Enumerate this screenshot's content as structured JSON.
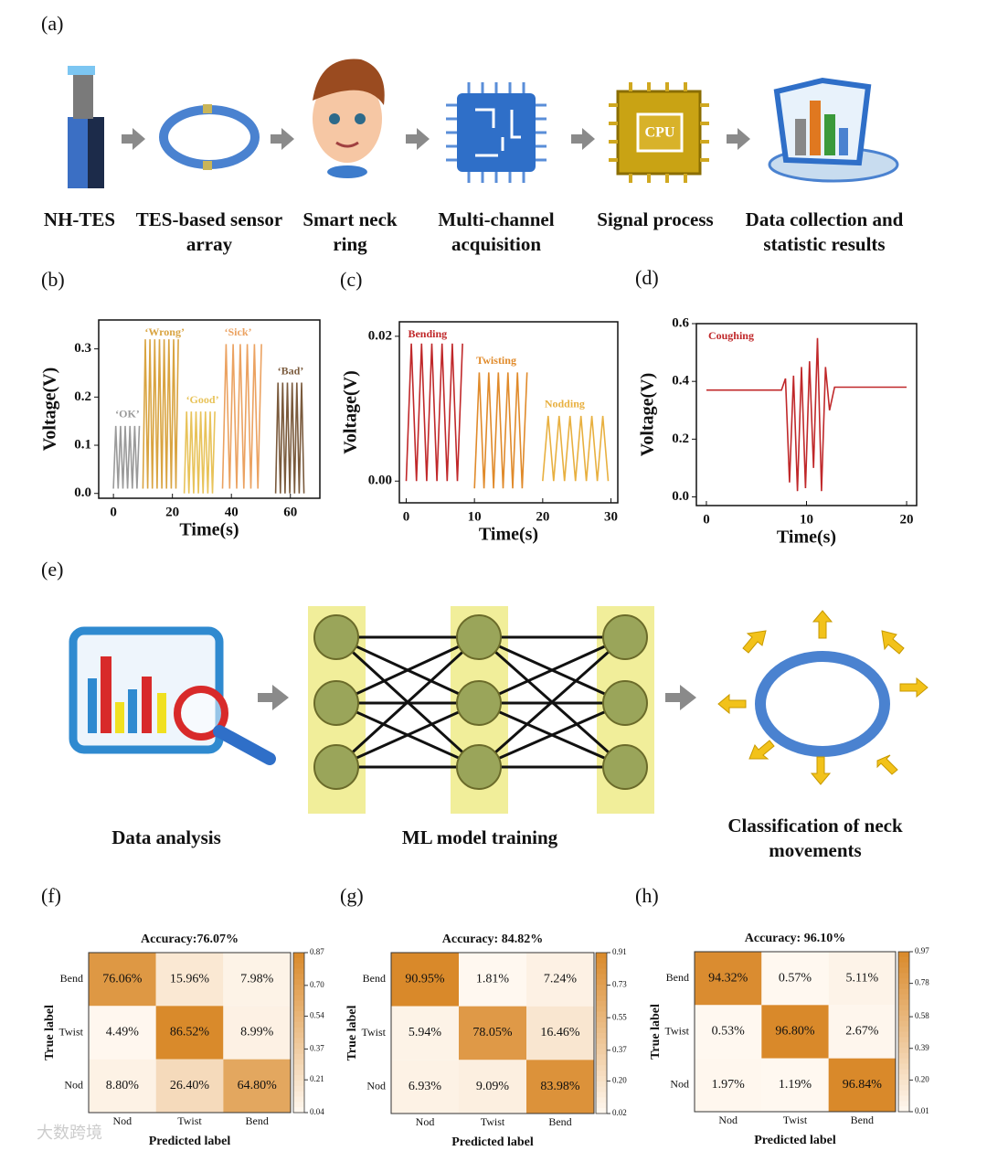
{
  "panel_labels": [
    "(a)",
    "(b)",
    "(c)",
    "(d)",
    "(e)",
    "(f)",
    "(g)",
    "(h)"
  ],
  "workflow": {
    "steps": [
      [
        "NH-TES"
      ],
      [
        "TES-based sensor",
        "array"
      ],
      [
        "Smart neck",
        "ring"
      ],
      [
        "Multi-channel",
        "acquisition"
      ],
      [
        "Signal process"
      ],
      [
        "Data collection and",
        "statistic results"
      ]
    ],
    "chip_text": "CPU"
  },
  "ml_pipeline": {
    "steps": [
      [
        "Data analysis"
      ],
      [
        "ML model training"
      ],
      [
        "Classification of neck",
        "movements"
      ]
    ]
  },
  "watermark": "大数跨境",
  "chart_data": [
    {
      "type": "line",
      "xlabel": "Time(s)",
      "ylabel": "Voltage(V)",
      "xlim": [
        -5,
        70
      ],
      "ylim": [
        -0.01,
        0.36
      ],
      "xticks": [
        0,
        20,
        40,
        60
      ],
      "yticks": [
        {
          "value": 0,
          "label": "0.0"
        },
        0.1,
        0.2,
        0.3
      ],
      "series": [
        {
          "name": "‘OK’",
          "color": "#9a9a9a",
          "x": [
            0,
            0.8,
            1.6,
            2.4,
            3.2,
            4,
            4.8,
            5.6,
            6.4,
            7.2,
            8,
            8.8
          ],
          "values": [
            0.01,
            0.14,
            0.01,
            0.14,
            0.01,
            0.14,
            0.01,
            0.14,
            0.01,
            0.14,
            0.01,
            0.14
          ]
        },
        {
          "name": "‘Wrong’",
          "color": "#d9a441",
          "x": [
            10,
            10.8,
            11.6,
            12.4,
            13.2,
            14,
            14.8,
            15.6,
            16.4,
            17.2,
            18,
            18.8,
            19.6,
            20.4,
            21.2,
            22
          ],
          "values": [
            0.01,
            0.32,
            0.01,
            0.32,
            0.01,
            0.32,
            0.01,
            0.32,
            0.01,
            0.32,
            0.01,
            0.32,
            0.01,
            0.32,
            0.01,
            0.32
          ]
        },
        {
          "name": "‘Good’",
          "color": "#e8c35a",
          "x": [
            24,
            24.8,
            25.6,
            26.4,
            27.2,
            28,
            28.8,
            29.6,
            30.4,
            31.2,
            32,
            32.8,
            33.6,
            34.4
          ],
          "values": [
            0,
            0.17,
            0,
            0.17,
            0,
            0.17,
            0,
            0.17,
            0,
            0.17,
            0,
            0.17,
            0,
            0.17
          ]
        },
        {
          "name": "‘Sick’",
          "color": "#eba261",
          "x": [
            37,
            38.2,
            39.4,
            40.6,
            41.8,
            43,
            44.2,
            45.4,
            46.6,
            47.8,
            49,
            50.2
          ],
          "values": [
            0.01,
            0.31,
            0.01,
            0.31,
            0.01,
            0.31,
            0.01,
            0.31,
            0.01,
            0.31,
            0.01,
            0.31
          ]
        },
        {
          "name": "‘Bad’",
          "color": "#7a5a3c",
          "x": [
            55,
            55.8,
            56.6,
            57.4,
            58.2,
            59,
            59.8,
            60.6,
            61.4,
            62.2,
            63,
            63.8,
            64.6
          ],
          "values": [
            0,
            0.23,
            0,
            0.23,
            0,
            0.23,
            0,
            0.23,
            0,
            0.23,
            0,
            0.23,
            0
          ]
        }
      ]
    },
    {
      "type": "line",
      "xlabel": "Time(s)",
      "ylabel": "Voltage(V)",
      "xlim": [
        -1,
        31
      ],
      "ylim": [
        -0.003,
        0.022
      ],
      "xticks": [
        0,
        10,
        20,
        30
      ],
      "yticks": [
        {
          "value": 0,
          "label": "0.00"
        },
        0.02
      ],
      "series": [
        {
          "name": "Bending",
          "color": "#c0282a",
          "x": [
            0,
            0.75,
            1.5,
            2.25,
            3,
            3.75,
            4.5,
            5.25,
            6,
            6.75,
            7.5,
            8.25
          ],
          "values": [
            0,
            0.019,
            0,
            0.019,
            0,
            0.019,
            0,
            0.019,
            0,
            0.019,
            0,
            0.019
          ]
        },
        {
          "name": "Twisting",
          "color": "#e08a2a",
          "x": [
            10,
            10.7,
            11.4,
            12.1,
            12.8,
            13.5,
            14.2,
            14.9,
            15.6,
            16.3,
            17,
            17.7
          ],
          "values": [
            -0.001,
            0.015,
            -0.001,
            0.015,
            -0.001,
            0.015,
            -0.001,
            0.015,
            -0.001,
            0.015,
            -0.001,
            0.015
          ]
        },
        {
          "name": "Nodding",
          "color": "#e8b040",
          "x": [
            20,
            20.8,
            21.6,
            22.4,
            23.2,
            24,
            24.8,
            25.6,
            26.4,
            27.2,
            28,
            28.8,
            29.6
          ],
          "values": [
            0,
            0.009,
            0,
            0.009,
            0,
            0.009,
            0,
            0.009,
            0,
            0.009,
            0,
            0.009,
            0
          ]
        }
      ]
    },
    {
      "type": "line",
      "xlabel": "Time(s)",
      "ylabel": "Voltage(V)",
      "xlim": [
        -1,
        21
      ],
      "ylim": [
        -0.03,
        0.6
      ],
      "xticks": [
        0,
        10,
        20
      ],
      "yticks": [
        {
          "value": 0,
          "label": "0.0"
        },
        0.2,
        0.4,
        0.6
      ],
      "series": [
        {
          "name": "Coughing",
          "color": "#c0282a",
          "x": [
            0,
            7.5,
            7.9,
            8.3,
            8.7,
            9.1,
            9.5,
            9.9,
            10.3,
            10.7,
            11.1,
            11.5,
            11.9,
            12.3,
            12.8,
            20
          ],
          "values": [
            0.37,
            0.37,
            0.41,
            0.05,
            0.42,
            0.02,
            0.45,
            0.03,
            0.47,
            0.1,
            0.55,
            0.02,
            0.45,
            0.3,
            0.38,
            0.38
          ]
        }
      ]
    },
    {
      "type": "heatmap",
      "title": "Accuracy:76.07%",
      "xlabel": "Predicted label",
      "ylabel": "True label",
      "rows": [
        "Bend",
        "Twist",
        "Nod"
      ],
      "columns": [
        "Nod",
        "Twist",
        "Bend"
      ],
      "values": [
        [
          0.7606,
          0.1596,
          0.0798
        ],
        [
          0.0449,
          0.8652,
          0.0899
        ],
        [
          0.088,
          0.264,
          0.648
        ]
      ],
      "value_labels": [
        [
          "76.06%",
          "15.96%",
          "7.98%"
        ],
        [
          "4.49%",
          "86.52%",
          "8.99%"
        ],
        [
          "8.80%",
          "26.40%",
          "64.80%"
        ]
      ],
      "zlim": [
        0.04,
        0.87
      ],
      "zticks": [
        0.87,
        {
          "value": 0.7,
          "label": "0.70"
        },
        0.54,
        0.37,
        0.21,
        0.04
      ]
    },
    {
      "type": "heatmap",
      "title": "Accuracy: 84.82%",
      "xlabel": "Predicted label",
      "ylabel": "True label",
      "rows": [
        "Bend",
        "Twist",
        "Nod"
      ],
      "columns": [
        "Nod",
        "Twist",
        "Bend"
      ],
      "values": [
        [
          0.9095,
          0.0181,
          0.0724
        ],
        [
          0.0594,
          0.7805,
          0.1646
        ],
        [
          0.0693,
          0.0909,
          0.8398
        ]
      ],
      "value_labels": [
        [
          "90.95%",
          "1.81%",
          "7.24%"
        ],
        [
          "5.94%",
          "78.05%",
          "16.46%"
        ],
        [
          "6.93%",
          "9.09%",
          "83.98%"
        ]
      ],
      "zlim": [
        0.02,
        0.91
      ],
      "zticks": [
        0.91,
        0.73,
        0.55,
        0.37,
        {
          "value": 0.2,
          "label": "0.20"
        },
        0.02
      ]
    },
    {
      "type": "heatmap",
      "title": "Accuracy: 96.10%",
      "xlabel": "Predicted label",
      "ylabel": "True label",
      "rows": [
        "Bend",
        "Twist",
        "Nod"
      ],
      "columns": [
        "Nod",
        "Twist",
        "Bend"
      ],
      "values": [
        [
          0.9432,
          0.0057,
          0.0511
        ],
        [
          0.0053,
          0.968,
          0.0267
        ],
        [
          0.0197,
          0.0119,
          0.9684
        ]
      ],
      "value_labels": [
        [
          "94.32%",
          "0.57%",
          "5.11%"
        ],
        [
          "0.53%",
          "96.80%",
          "2.67%"
        ],
        [
          "1.97%",
          "1.19%",
          "96.84%"
        ]
      ],
      "zlim": [
        0.01,
        0.97
      ],
      "zticks": [
        0.97,
        0.78,
        0.58,
        0.39,
        {
          "value": 0.2,
          "label": "0.20"
        },
        0.01
      ]
    }
  ]
}
